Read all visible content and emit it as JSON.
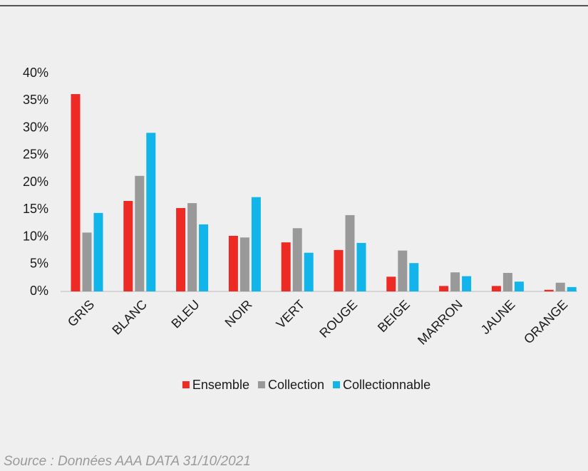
{
  "chart_data": {
    "type": "bar",
    "categories": [
      "GRIS",
      "BLANC",
      "BLEU",
      "NOIR",
      "VERT",
      "ROUGE",
      "BEIGE",
      "MARRON",
      "JAUNE",
      "ORANGE"
    ],
    "series": [
      {
        "name": "Ensemble",
        "color": "#ee2a24",
        "values": [
          36.2,
          16.6,
          15.3,
          10.2,
          9.0,
          7.6,
          2.7,
          1.0,
          1.0,
          0.3
        ]
      },
      {
        "name": "Collection",
        "color": "#999999",
        "values": [
          10.8,
          21.2,
          16.2,
          9.9,
          11.6,
          14.0,
          7.5,
          3.5,
          3.4,
          1.6
        ]
      },
      {
        "name": "Collectionnable",
        "color": "#11b5ea",
        "values": [
          14.4,
          29.1,
          12.3,
          17.3,
          7.1,
          8.9,
          5.2,
          2.8,
          1.8,
          0.8
        ]
      }
    ],
    "ylim": [
      0,
      40
    ],
    "yticks": [
      {
        "value": 0,
        "label": "0%"
      },
      {
        "value": 5,
        "label": "5%"
      },
      {
        "value": 10,
        "label": "10%"
      },
      {
        "value": 15,
        "label": "15%"
      },
      {
        "value": 20,
        "label": "20%"
      },
      {
        "value": 25,
        "label": "25%"
      },
      {
        "value": 30,
        "label": "30%"
      },
      {
        "value": 35,
        "label": "35%"
      },
      {
        "value": 40,
        "label": "40%"
      }
    ],
    "legend": "bottom",
    "source": "Source : Données AAA DATA 31/10/2021"
  }
}
